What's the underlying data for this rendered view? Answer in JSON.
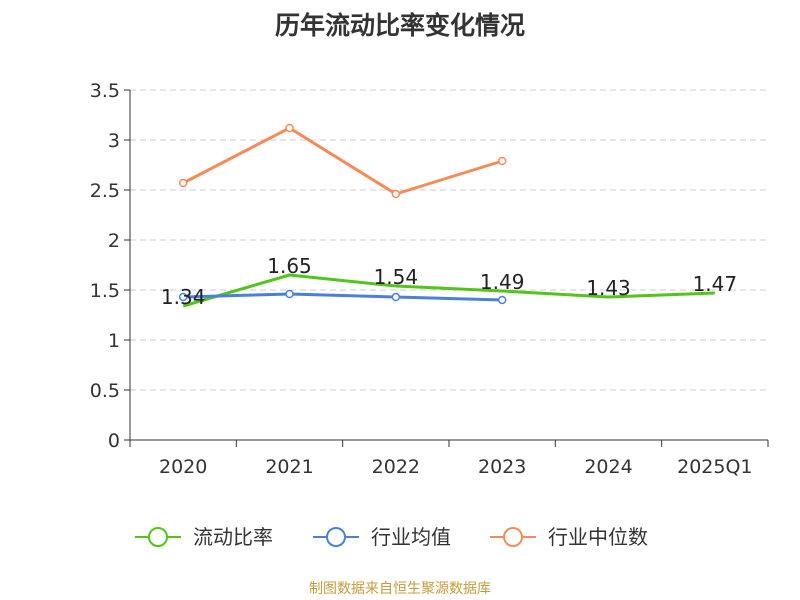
{
  "title": "历年流动比率变化情况",
  "source": "制图数据来自恒生聚源数据库",
  "chart_data": {
    "type": "line",
    "categories": [
      "2020",
      "2021",
      "2022",
      "2023",
      "2024",
      "2025Q1"
    ],
    "y_ticks": [
      "0",
      "0.5",
      "1",
      "1.5",
      "2",
      "2.5",
      "3",
      "3.5"
    ],
    "ylim": [
      0,
      3.5
    ],
    "grid": true,
    "legend_position": "bottom",
    "series": [
      {
        "name": "流动比率",
        "color": "#52c41a",
        "values": [
          1.34,
          1.65,
          1.54,
          1.49,
          1.43,
          1.47
        ],
        "labels": [
          "1.34",
          "1.65",
          "1.54",
          "1.49",
          "1.43",
          "1.47"
        ],
        "show_markers": false
      },
      {
        "name": "行业均值",
        "color": "#4a7fdb",
        "values": [
          1.43,
          1.46,
          1.43,
          1.4,
          null,
          null
        ],
        "show_markers": true
      },
      {
        "name": "行业中位数",
        "color": "#f48c5a",
        "values": [
          2.57,
          3.12,
          2.46,
          2.79,
          null,
          null
        ],
        "show_markers": true
      }
    ]
  }
}
